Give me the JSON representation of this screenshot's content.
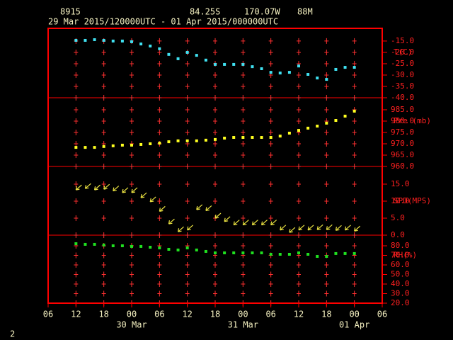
{
  "header": {
    "station": "8915",
    "lat": "84.25S",
    "lon": "170.07W",
    "elev": "88M",
    "period": "29 Mar 2015/120000UTC - 01 Apr 2015/000000UTC",
    "page": "2"
  },
  "chart_data": [
    {
      "type": "scatter",
      "ylabel": "T(C)",
      "color": "#40e0f0",
      "x": [
        12,
        14,
        16,
        18,
        20,
        22,
        24,
        26,
        28,
        30,
        32,
        34,
        36,
        38,
        40,
        42,
        44,
        46,
        48,
        50,
        52,
        54,
        56,
        58,
        60,
        62,
        64,
        66,
        68,
        70,
        72
      ],
      "values": [
        -14.7,
        -14.7,
        -14.4,
        -14.7,
        -15,
        -15,
        -15.3,
        -16.3,
        -17.2,
        -18.4,
        -20.9,
        -22.8,
        -20,
        -21.3,
        -23.4,
        -25.3,
        -25.3,
        -25.3,
        -25.3,
        -26.3,
        -27.2,
        -28.8,
        -29.1,
        -28.8,
        -26,
        -29.7,
        -31.3,
        -31.9,
        -27.5,
        -26.6,
        -26.6
      ],
      "ylim": [
        -40,
        -9.4
      ],
      "yticks": [
        {
          "value": -15,
          "label": "-15.0"
        },
        {
          "value": -20,
          "label": "-20.0"
        },
        {
          "value": -25,
          "label": "-25.0"
        },
        {
          "value": -30,
          "label": "-30.0"
        },
        {
          "value": -35,
          "label": "-35.0"
        },
        {
          "value": -40,
          "label": "-40.0"
        }
      ]
    },
    {
      "type": "scatter",
      "ylabel": "Pre (mb)",
      "color": "#ffff20",
      "x": [
        12,
        14,
        16,
        18,
        20,
        22,
        24,
        26,
        28,
        30,
        32,
        34,
        36,
        38,
        40,
        42,
        44,
        46,
        48,
        50,
        52,
        54,
        56,
        58,
        60,
        62,
        64,
        66,
        68,
        70,
        72
      ],
      "values": [
        968.4,
        968.4,
        968.4,
        968.8,
        969.1,
        969.4,
        969.4,
        969.7,
        970,
        970.3,
        970.9,
        971.3,
        971.3,
        971.3,
        971.6,
        971.9,
        972.5,
        972.8,
        972.8,
        972.8,
        972.8,
        972.8,
        973.4,
        974.7,
        975.9,
        976.9,
        977.8,
        979.1,
        980.3,
        982.2,
        984.4
      ],
      "ylim": [
        960,
        990.3
      ],
      "yticks": [
        {
          "value": 985,
          "label": "985.0"
        },
        {
          "value": 980,
          "label": "980.0"
        },
        {
          "value": 975,
          "label": "975.0"
        },
        {
          "value": 970,
          "label": "970.0"
        },
        {
          "value": 965,
          "label": "965.0"
        },
        {
          "value": 960,
          "label": "960.0"
        }
      ]
    },
    {
      "type": "barb",
      "ylabel": "SPD(MPS)",
      "color": "#e8e040",
      "x": [
        12,
        14,
        16,
        18,
        20,
        22,
        24,
        26,
        28,
        30,
        32,
        34,
        36,
        38,
        40,
        42,
        44,
        46,
        48,
        50,
        52,
        54,
        56,
        58,
        60,
        62,
        64,
        66,
        68,
        70,
        72
      ],
      "values": [
        13.3,
        13.7,
        13.3,
        13.5,
        13,
        12.5,
        12.5,
        11,
        9.8,
        7,
        3.3,
        1,
        1.5,
        7.5,
        7.2,
        5,
        4,
        3,
        3,
        3,
        3,
        3,
        1.5,
        0.8,
        1.5,
        1.5,
        1.6,
        1.6,
        1.4,
        1.5,
        1.2
      ],
      "ylim": [
        0,
        20.2
      ],
      "yticks": [
        {
          "value": 15,
          "label": "15.0"
        },
        {
          "value": 10,
          "label": "10.0"
        },
        {
          "value": 5,
          "label": "5.0"
        },
        {
          "value": 0,
          "label": "0.0"
        }
      ]
    },
    {
      "type": "scatter",
      "ylabel": "RH(%)",
      "color": "#20e020",
      "x": [
        12,
        14,
        16,
        18,
        20,
        22,
        24,
        26,
        28,
        30,
        32,
        34,
        36,
        38,
        40,
        42,
        44,
        46,
        48,
        50,
        52,
        54,
        56,
        58,
        60,
        62,
        64,
        66,
        68,
        70,
        72
      ],
      "values": [
        82.2,
        81.5,
        81.5,
        80.8,
        80,
        80,
        79.3,
        79.3,
        78.5,
        77.8,
        76.3,
        75.6,
        77.8,
        75.6,
        74.1,
        72.6,
        72.6,
        72.6,
        72.6,
        72.6,
        72.6,
        71.1,
        71.1,
        71.1,
        72.6,
        71.1,
        68.9,
        68.9,
        71.9,
        71.9,
        71.9
      ],
      "ylim": [
        20,
        91.1
      ],
      "yticks": [
        {
          "value": 80,
          "label": "80.0"
        },
        {
          "value": 70,
          "label": "70.0"
        },
        {
          "value": 60,
          "label": "60.0"
        },
        {
          "value": 50,
          "label": "50.0"
        },
        {
          "value": 40,
          "label": "40.0"
        },
        {
          "value": 30,
          "label": "30.0"
        },
        {
          "value": 20,
          "label": "20.0"
        }
      ],
      "xlim": [
        6,
        78
      ],
      "xticks": [
        {
          "value": 6,
          "label": "06"
        },
        {
          "value": 12,
          "label": "12"
        },
        {
          "value": 18,
          "label": "18"
        },
        {
          "value": 24,
          "label": "00"
        },
        {
          "value": 30,
          "label": "06"
        },
        {
          "value": 36,
          "label": "12"
        },
        {
          "value": 42,
          "label": "18"
        },
        {
          "value": 48,
          "label": "00"
        },
        {
          "value": 54,
          "label": "06"
        },
        {
          "value": 60,
          "label": "12"
        },
        {
          "value": 66,
          "label": "18"
        },
        {
          "value": 72,
          "label": "00"
        },
        {
          "value": 78,
          "label": "06"
        }
      ],
      "xdates": [
        {
          "value": 24,
          "label": "30 Mar"
        },
        {
          "value": 48,
          "label": "31 Mar"
        },
        {
          "value": 72,
          "label": "01 Apr"
        }
      ]
    }
  ]
}
